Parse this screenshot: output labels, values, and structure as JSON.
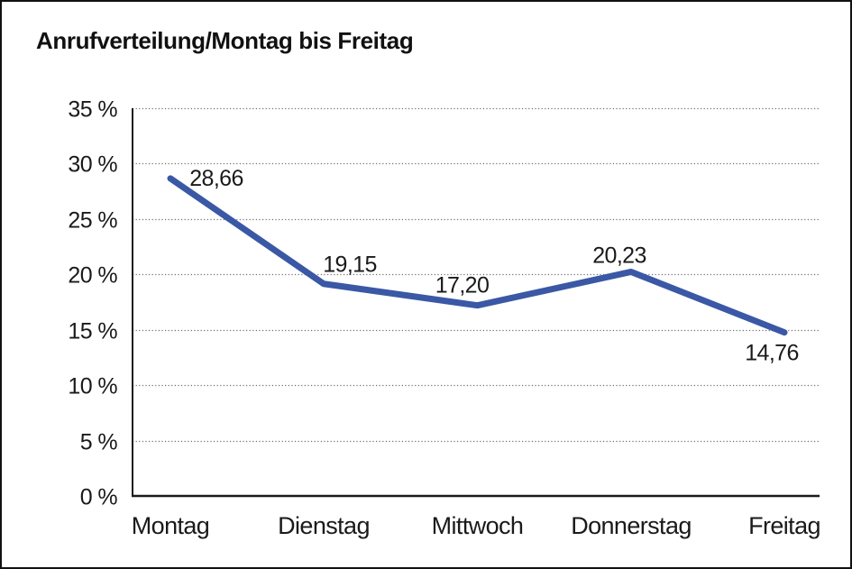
{
  "chart": {
    "title": "Anrufverteilung/Montag bis Freitag"
  },
  "chart_data": {
    "type": "line",
    "title": "Anrufverteilung/Montag bis Freitag",
    "categories": [
      "Montag",
      "Dienstag",
      "Mittwoch",
      "Donnerstag",
      "Freitag"
    ],
    "values": [
      28.66,
      19.15,
      17.2,
      20.23,
      14.76
    ],
    "value_labels": [
      "28,66",
      "19,15",
      "17,20",
      "20,23",
      "14,76"
    ],
    "xlabel": "",
    "ylabel": "",
    "ylim": [
      0,
      35
    ],
    "ytick_step": 5,
    "ytick_labels": [
      "0 %",
      "5 %",
      "10 %",
      "15 %",
      "20 %",
      "25 %",
      "30 %",
      "35 %"
    ],
    "grid": "horizontal-dotted",
    "legend": "none",
    "line_color": "#3A58A5",
    "axis_color": "#1a1a1a",
    "gridline_color": "#6e6e6e",
    "background_color": "#ffffff"
  }
}
